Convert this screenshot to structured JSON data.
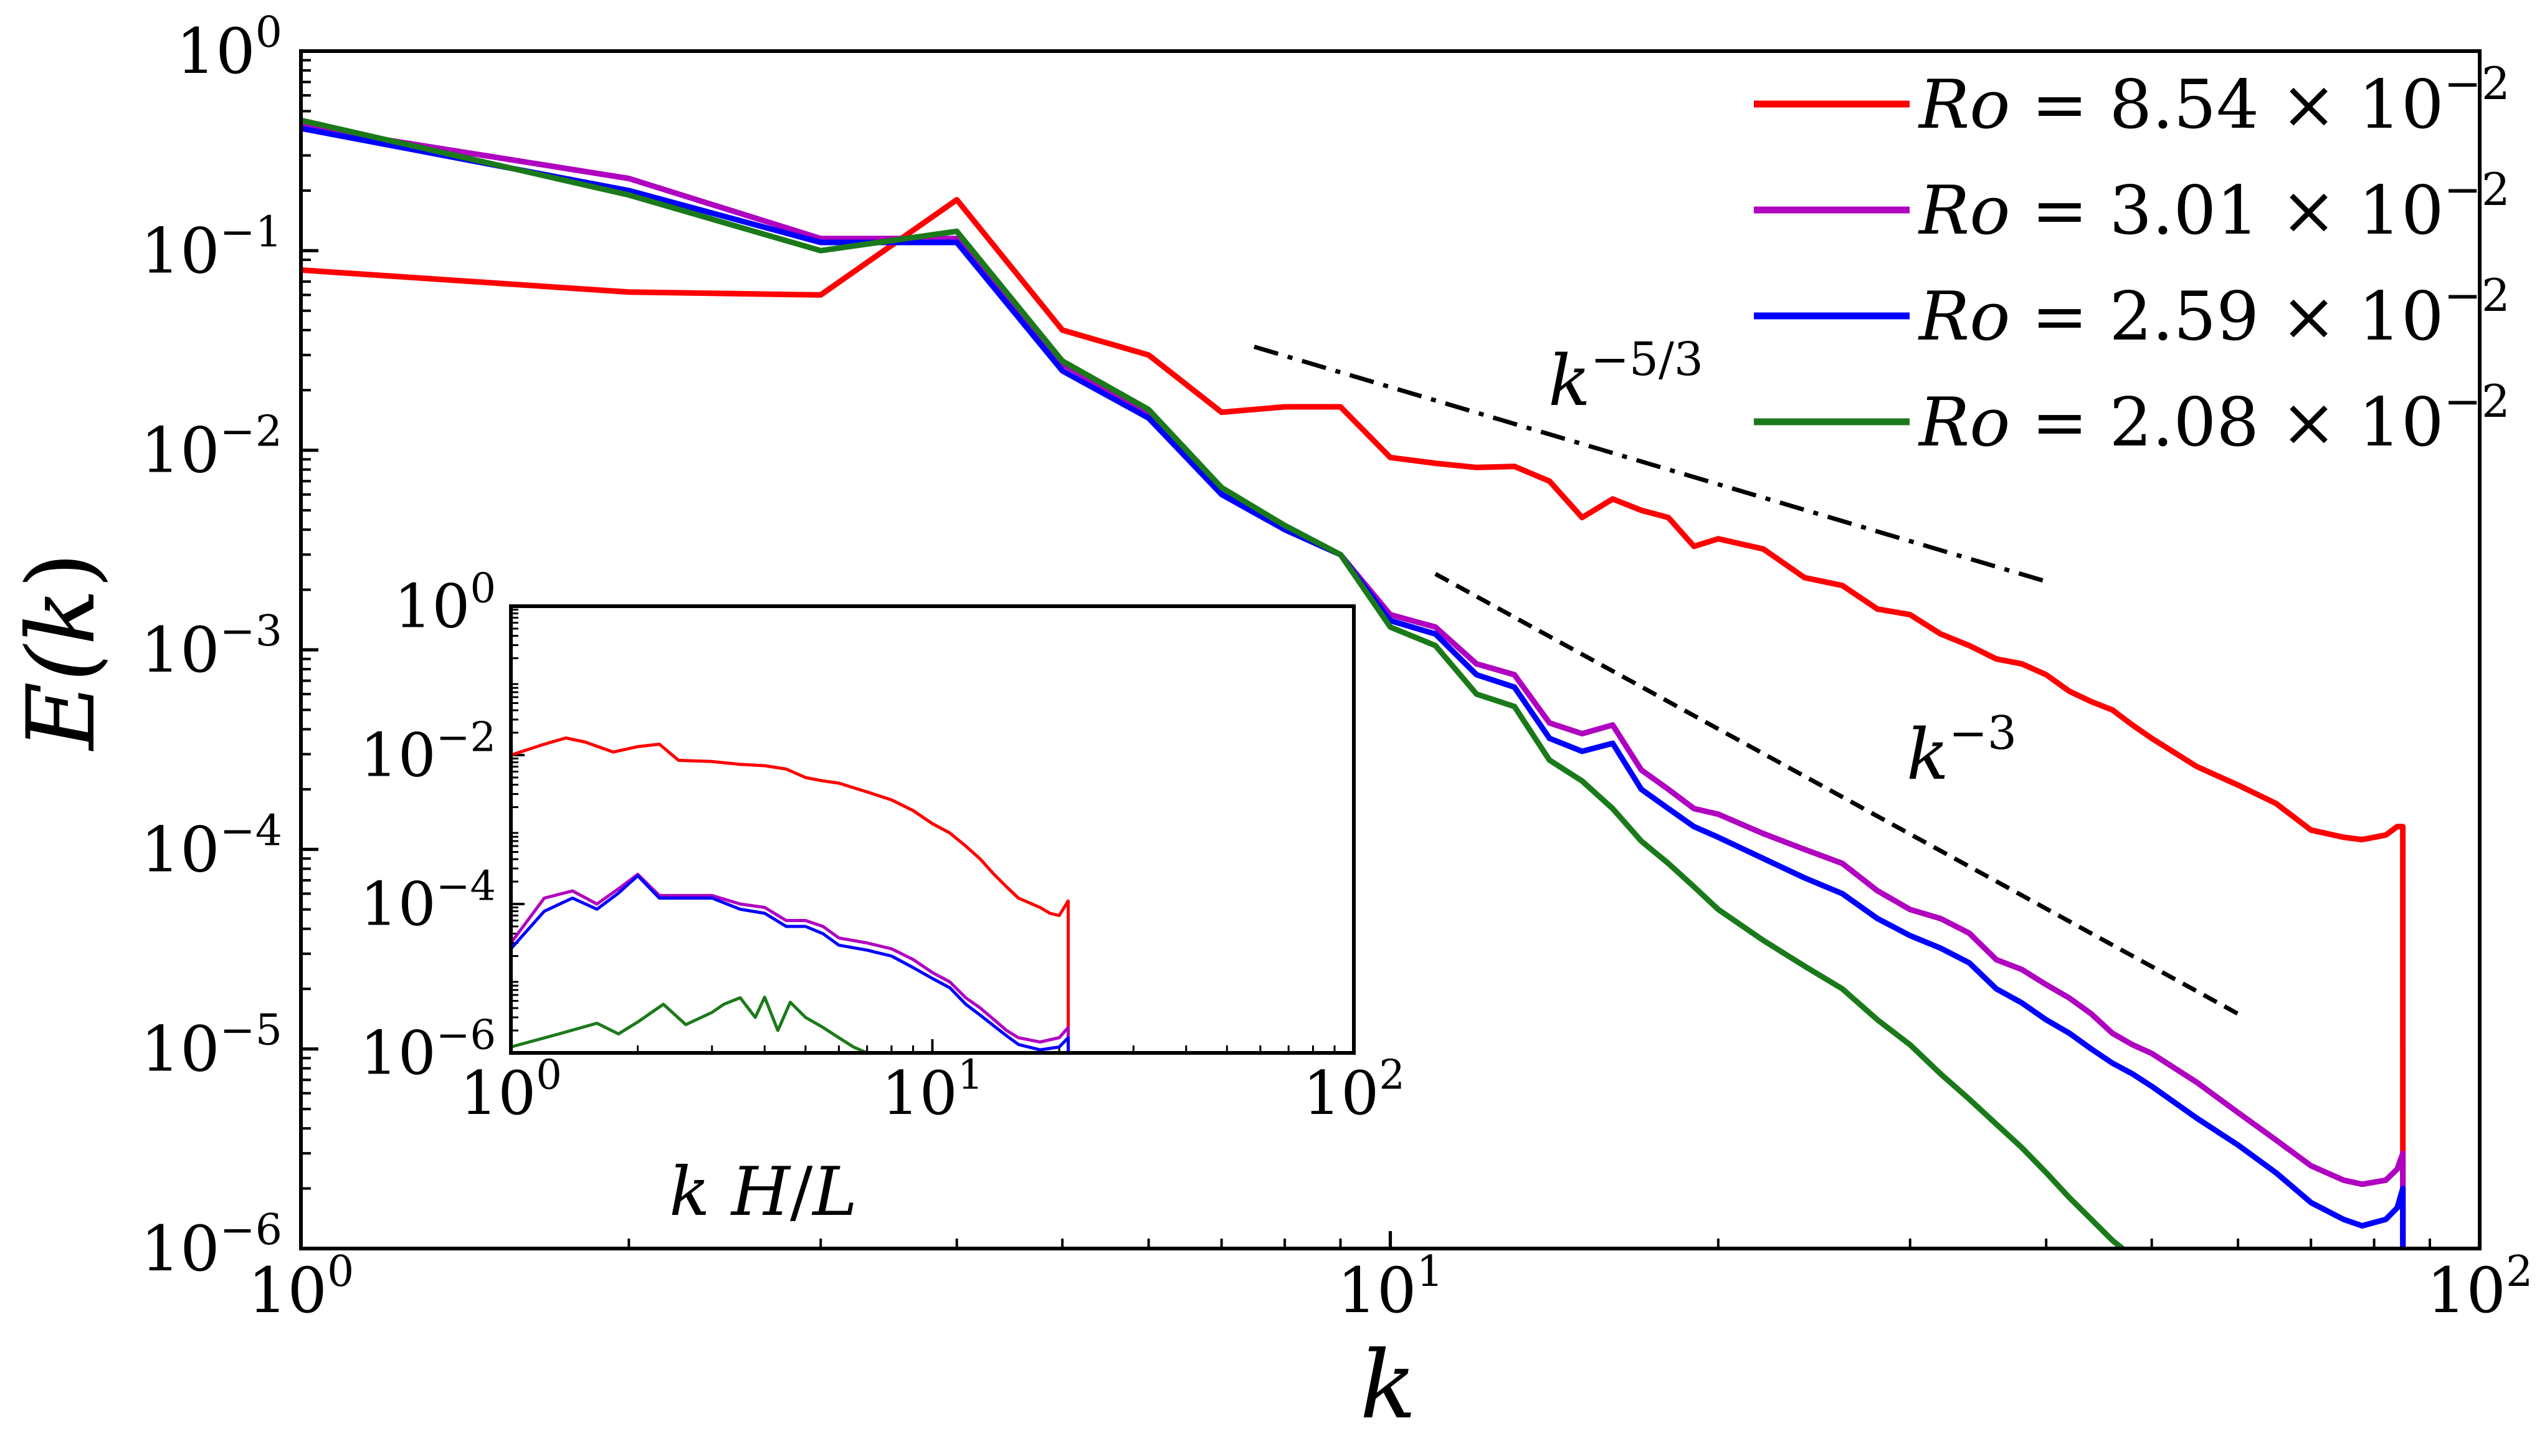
{
  "chart_data": [
    {
      "id": "main",
      "type": "line",
      "scale": "loglog",
      "xlim": [
        1,
        100
      ],
      "ylim": [
        1e-06,
        1
      ],
      "xlabel": "k",
      "ylabel_parts": {
        "base": "E(",
        "var": "k",
        "close": ")"
      },
      "xticks": [
        {
          "value": 1,
          "base": "10",
          "exp": "0"
        },
        {
          "value": 10,
          "base": "10",
          "exp": "1"
        },
        {
          "value": 100,
          "base": "10",
          "exp": "2"
        }
      ],
      "yticks": [
        {
          "value": 1,
          "base": "10",
          "exp": "0"
        },
        {
          "value": 0.1,
          "base": "10",
          "exp": "−1"
        },
        {
          "value": 0.01,
          "base": "10",
          "exp": "−2"
        },
        {
          "value": 0.001,
          "base": "10",
          "exp": "−3"
        },
        {
          "value": 0.0001,
          "base": "10",
          "exp": "−4"
        },
        {
          "value": 1e-05,
          "base": "10",
          "exp": "−5"
        },
        {
          "value": 1e-06,
          "base": "10",
          "exp": "−6"
        }
      ],
      "legend": {
        "placement": "top-right"
      },
      "series": [
        {
          "name": "Ro = 8.54 × 10^-2",
          "label": {
            "var": "Ro",
            "mid": " = 8.54 × 10",
            "exp": "−2"
          },
          "color": "#ff0000",
          "x": [
            1,
            2,
            3,
            4,
            5,
            6,
            7,
            8,
            9,
            10,
            11,
            12,
            13,
            14,
            15,
            16,
            17,
            18,
            19,
            20,
            22,
            24,
            26,
            28,
            30,
            32,
            34,
            36,
            38,
            40,
            42,
            44,
            46,
            48,
            50,
            55,
            60,
            65,
            70,
            75,
            78,
            82,
            84,
            85,
            85.01
          ],
          "y": [
            0.08,
            0.062,
            0.06,
            0.18,
            0.04,
            0.03,
            0.0155,
            0.0165,
            0.0165,
            0.0092,
            0.0086,
            0.0082,
            0.0083,
            0.007,
            0.0046,
            0.0057,
            0.005,
            0.0046,
            0.0033,
            0.0036,
            0.0032,
            0.0023,
            0.0021,
            0.0016,
            0.0015,
            0.0012,
            0.00105,
            0.0009,
            0.00085,
            0.00075,
            0.00062,
            0.00055,
            0.0005,
            0.00042,
            0.00036,
            0.00026,
            0.00021,
            0.00017,
            0.000125,
            0.000115,
            0.000112,
            0.000118,
            0.00013,
            0.00013,
            1e-06
          ]
        },
        {
          "name": "Ro = 3.01 × 10^-2",
          "label": {
            "var": "Ro",
            "mid": " = 3.01 × 10",
            "exp": "−2"
          },
          "color": "#b000c0",
          "x": [
            1,
            2,
            3,
            4,
            5,
            6,
            7,
            8,
            9,
            10,
            11,
            12,
            13,
            14,
            15,
            16,
            17,
            18,
            19,
            20,
            22,
            24,
            26,
            28,
            30,
            32,
            34,
            36,
            38,
            40,
            42,
            44,
            46,
            48,
            50,
            55,
            60,
            65,
            70,
            75,
            78,
            82,
            84,
            85,
            85.01
          ],
          "y": [
            0.42,
            0.23,
            0.115,
            0.115,
            0.027,
            0.0155,
            0.0062,
            0.004,
            0.003,
            0.0015,
            0.0013,
            0.00085,
            0.00075,
            0.00043,
            0.00038,
            0.00042,
            0.00025,
            0.0002,
            0.00016,
            0.00015,
            0.00012,
            0.0001,
            8.5e-05,
            6.2e-05,
            5e-05,
            4.5e-05,
            3.8e-05,
            2.8e-05,
            2.5e-05,
            2.1e-05,
            1.8e-05,
            1.5e-05,
            1.2e-05,
            1.05e-05,
            9.5e-06,
            6.8e-06,
            4.8e-06,
            3.5e-06,
            2.6e-06,
            2.2e-06,
            2.1e-06,
            2.2e-06,
            2.5e-06,
            3e-06,
            1e-06
          ]
        },
        {
          "name": "Ro = 2.59 × 10^-2",
          "label": {
            "var": "Ro",
            "mid": " = 2.59 × 10",
            "exp": "−2"
          },
          "color": "#0000ff",
          "x": [
            1,
            2,
            3,
            4,
            5,
            6,
            7,
            8,
            9,
            10,
            11,
            12,
            13,
            14,
            15,
            16,
            17,
            18,
            19,
            20,
            22,
            24,
            26,
            28,
            30,
            32,
            34,
            36,
            38,
            40,
            42,
            44,
            46,
            48,
            50,
            55,
            60,
            65,
            70,
            75,
            78,
            82,
            84,
            85,
            85.01
          ],
          "y": [
            0.41,
            0.2,
            0.11,
            0.11,
            0.025,
            0.0145,
            0.006,
            0.004,
            0.003,
            0.0014,
            0.0012,
            0.00075,
            0.00065,
            0.00036,
            0.00031,
            0.00034,
            0.0002,
            0.00016,
            0.00013,
            0.000115,
            9e-05,
            7.2e-05,
            6e-05,
            4.5e-05,
            3.7e-05,
            3.2e-05,
            2.7e-05,
            2e-05,
            1.7e-05,
            1.4e-05,
            1.2e-05,
            1e-05,
            8.5e-06,
            7.5e-06,
            6.5e-06,
            4.5e-06,
            3.3e-06,
            2.4e-06,
            1.7e-06,
            1.4e-06,
            1.3e-06,
            1.4e-06,
            1.6e-06,
            2e-06,
            1e-06
          ]
        },
        {
          "name": "Ro = 2.08 × 10^-2",
          "label": {
            "var": "Ro",
            "mid": " = 2.08 × 10",
            "exp": "−2"
          },
          "color": "#1a7a1a",
          "x": [
            1,
            2,
            3,
            4,
            5,
            6,
            7,
            8,
            9,
            10,
            11,
            12,
            13,
            14,
            15,
            16,
            17,
            18,
            19,
            20,
            22,
            24,
            26,
            28,
            30,
            32,
            34,
            36,
            38,
            40,
            42,
            44,
            46,
            47
          ],
          "y": [
            0.45,
            0.19,
            0.1,
            0.125,
            0.028,
            0.016,
            0.0065,
            0.0042,
            0.003,
            0.0013,
            0.00105,
            0.0006,
            0.00052,
            0.00028,
            0.00022,
            0.00016,
            0.00011,
            8.5e-05,
            6.5e-05,
            5e-05,
            3.5e-05,
            2.6e-05,
            2e-05,
            1.4e-05,
            1.05e-05,
            7.5e-06,
            5.6e-06,
            4.2e-06,
            3.2e-06,
            2.4e-06,
            1.8e-06,
            1.4e-06,
            1.1e-06,
            1e-06
          ]
        }
      ],
      "reference_lines": [
        {
          "name": "k^-5/3",
          "label": {
            "base": "k",
            "exp": "−5/3"
          },
          "x": [
            7.5,
            40
          ],
          "y": [
            0.033,
            0.0022
          ],
          "style": "dash-dot"
        },
        {
          "name": "k^-3",
          "label": {
            "base": "k",
            "exp": "−3"
          },
          "x": [
            11,
            60
          ],
          "y": [
            0.0024,
            1.5e-05
          ],
          "style": "dashed"
        }
      ]
    },
    {
      "id": "inset",
      "type": "line",
      "scale": "loglog",
      "xlim": [
        1,
        100
      ],
      "ylim": [
        1e-06,
        1
      ],
      "xlabel_parts": {
        "a": "k",
        "b": "H",
        "sep": "/",
        "c": "L"
      },
      "xticks": [
        {
          "value": 1,
          "base": "10",
          "exp": "0"
        },
        {
          "value": 10,
          "base": "10",
          "exp": "1"
        },
        {
          "value": 100,
          "base": "10",
          "exp": "2"
        }
      ],
      "yticks": [
        {
          "value": 1,
          "base": "10",
          "exp": "0"
        },
        {
          "value": 0.01,
          "base": "10",
          "exp": "−2"
        },
        {
          "value": 0.0001,
          "base": "10",
          "exp": "−4"
        },
        {
          "value": 1e-06,
          "base": "10",
          "exp": "−6"
        }
      ],
      "series": [
        {
          "name": "Ro = 8.54 × 10^-2",
          "color": "#ff0000",
          "x": [
            1,
            1.2,
            1.35,
            1.5,
            1.75,
            2,
            2.25,
            2.5,
            3,
            3.5,
            4,
            4.5,
            5,
            5.5,
            6,
            7,
            8,
            9,
            10,
            11,
            12,
            13,
            14,
            15,
            16,
            18,
            19,
            20,
            21,
            21.01
          ],
          "y": [
            0.01,
            0.014,
            0.017,
            0.015,
            0.011,
            0.013,
            0.014,
            0.0085,
            0.0082,
            0.0075,
            0.0072,
            0.0065,
            0.005,
            0.0045,
            0.0042,
            0.0032,
            0.0025,
            0.0018,
            0.0012,
            0.0009,
            0.0006,
            0.0004,
            0.00025,
            0.00017,
            0.00012,
            9e-05,
            7.5e-05,
            7e-05,
            0.00011,
            1e-06
          ]
        },
        {
          "name": "Ro = 3.01 × 10^-2",
          "color": "#b000c0",
          "x": [
            1,
            1.2,
            1.4,
            1.6,
            1.8,
            2,
            2.25,
            2.5,
            3,
            3.5,
            4,
            4.5,
            5,
            5.5,
            6,
            7,
            8,
            9,
            10,
            11,
            12,
            13,
            14,
            15,
            16,
            18,
            20,
            21,
            21.01
          ],
          "y": [
            3e-05,
            0.00012,
            0.00015,
            0.0001,
            0.00016,
            0.00025,
            0.00013,
            0.00013,
            0.00013,
            0.0001,
            9e-05,
            6e-05,
            6e-05,
            5e-05,
            3.5e-05,
            3e-05,
            2.5e-05,
            1.8e-05,
            1.2e-05,
            9e-06,
            5.5e-06,
            4e-06,
            2.8e-06,
            2e-06,
            1.6e-06,
            1.4e-06,
            1.6e-06,
            2.2e-06,
            1e-06
          ]
        },
        {
          "name": "Ro = 2.59 × 10^-2",
          "color": "#0000ff",
          "x": [
            1,
            1.2,
            1.4,
            1.6,
            1.8,
            2,
            2.25,
            2.5,
            3,
            3.5,
            4,
            4.5,
            5,
            5.5,
            6,
            7,
            8,
            9,
            10,
            11,
            12,
            13,
            14,
            15,
            16,
            18,
            20,
            21,
            21.01
          ],
          "y": [
            2.5e-05,
            8e-05,
            0.00012,
            8.5e-05,
            0.00014,
            0.00024,
            0.00012,
            0.00012,
            0.00012,
            8.5e-05,
            7.5e-05,
            5e-05,
            5e-05,
            4e-05,
            2.8e-05,
            2.4e-05,
            2e-05,
            1.4e-05,
            1e-05,
            7.5e-06,
            4.5e-06,
            3.2e-06,
            2.3e-06,
            1.7e-06,
            1.3e-06,
            1.1e-06,
            1.2e-06,
            1.6e-06,
            1e-06
          ]
        },
        {
          "name": "Ro = 2.08 × 10^-2",
          "color": "#1a7a1a",
          "x": [
            1,
            1.3,
            1.6,
            1.8,
            2,
            2.3,
            2.6,
            3,
            3.2,
            3.5,
            3.8,
            4,
            4.3,
            4.6,
            5,
            5.5,
            6,
            6.5,
            7
          ],
          "y": [
            1.2e-06,
            1.8e-06,
            2.5e-06,
            1.8e-06,
            2.6e-06,
            4.5e-06,
            2.4e-06,
            3.5e-06,
            4.5e-06,
            5.5e-06,
            3e-06,
            5.6e-06,
            2e-06,
            4.8e-06,
            3e-06,
            2.2e-06,
            1.6e-06,
            1.2e-06,
            1e-06
          ]
        }
      ]
    }
  ]
}
